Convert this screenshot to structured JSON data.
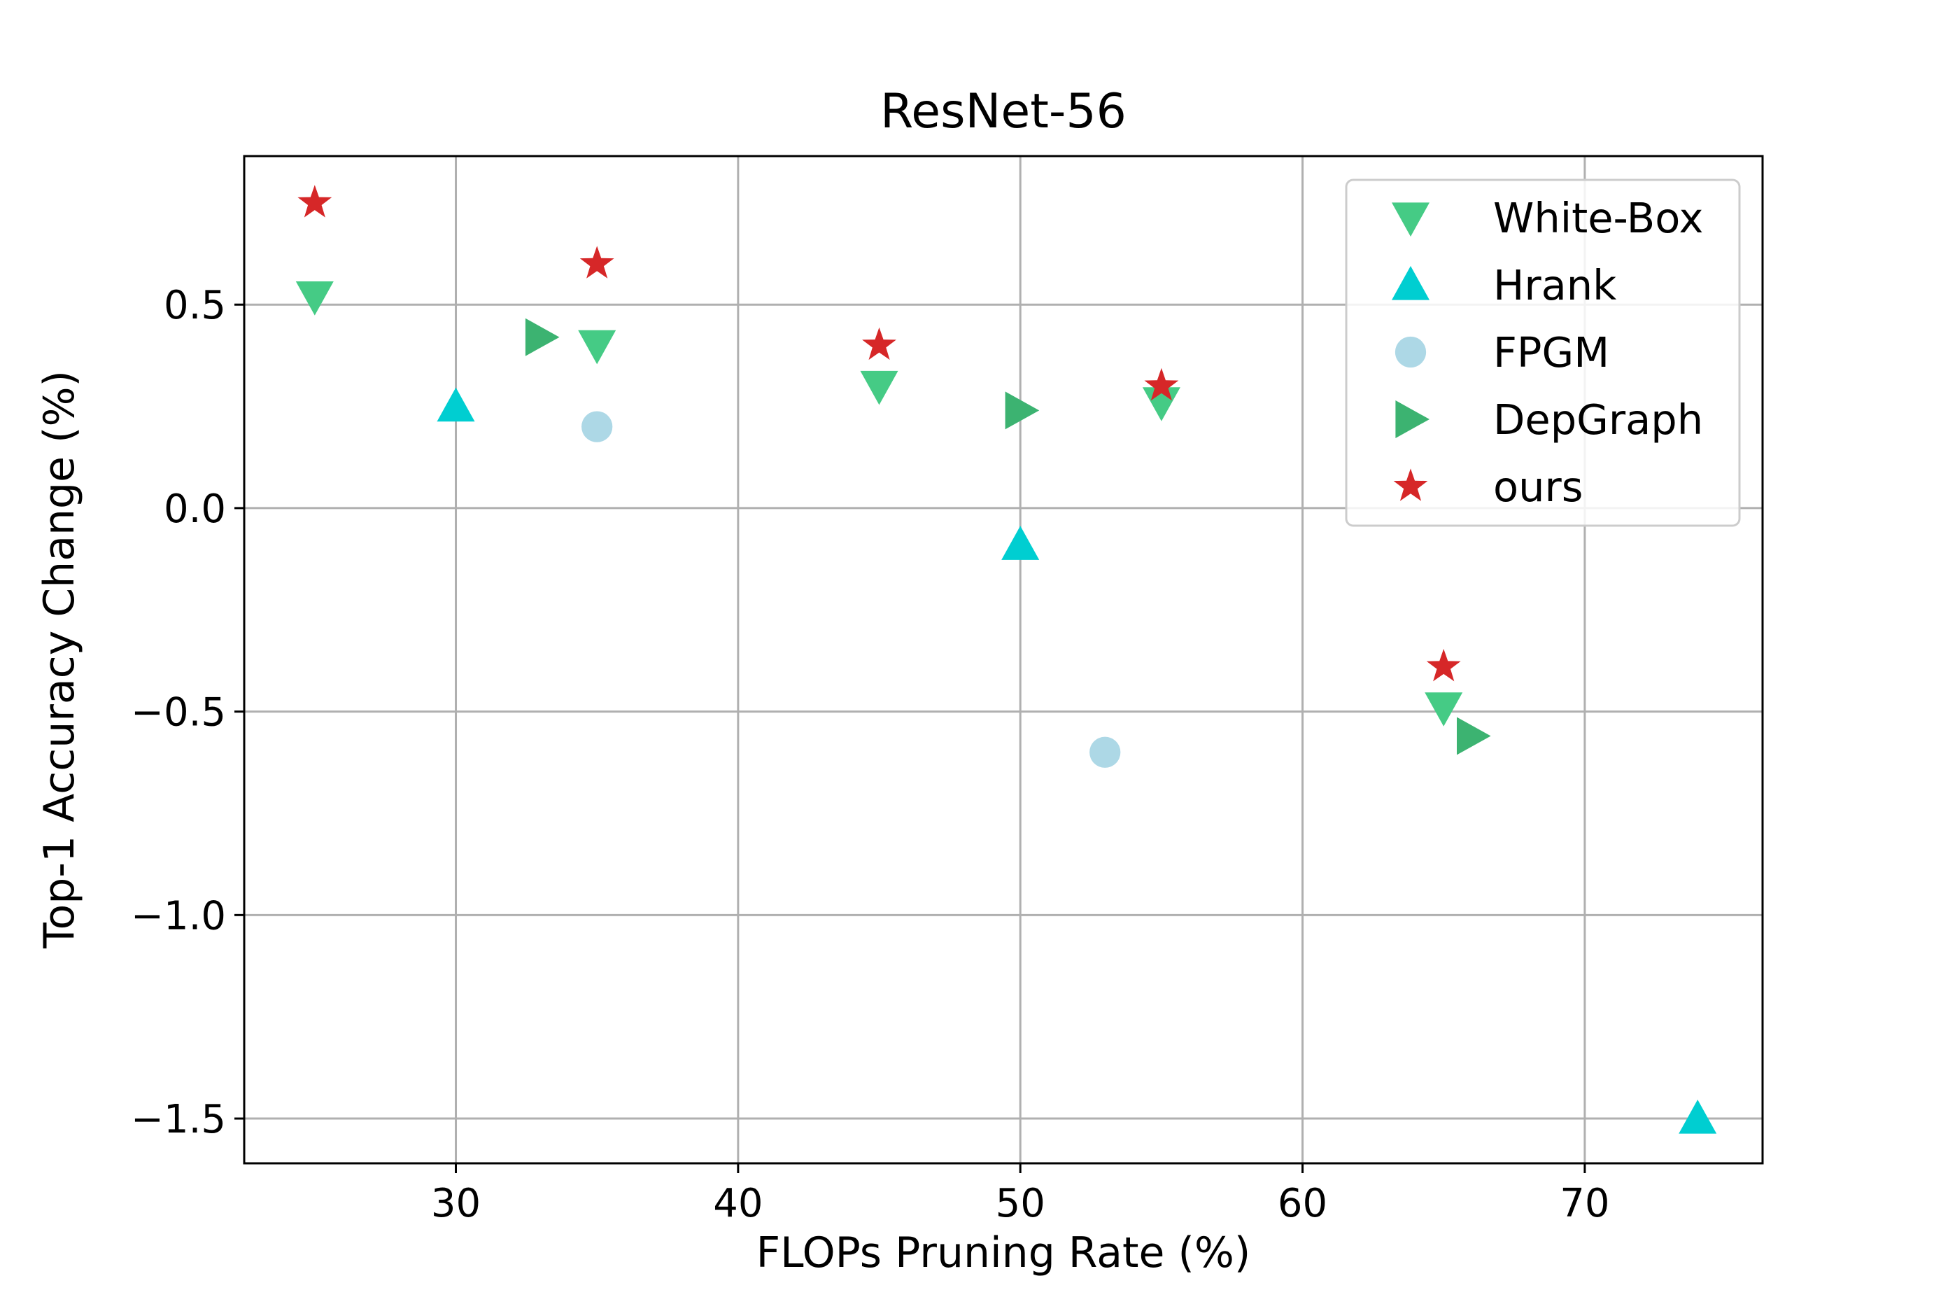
{
  "chart_data": {
    "type": "scatter",
    "title": "ResNet-56",
    "xlabel": "FLOPs Pruning Rate (%)",
    "ylabel": "Top-1 Accuracy Change (%)",
    "xlim": [
      22.5,
      76.3
    ],
    "ylim": [
      -1.61,
      0.865
    ],
    "xticks": [
      30,
      40,
      50,
      60,
      70
    ],
    "yticks": [
      0.5,
      0.0,
      -0.5,
      -1.0,
      -1.5
    ],
    "xtick_labels": [
      "30",
      "40",
      "50",
      "60",
      "70"
    ],
    "ytick_labels": [
      "0.5",
      "0.0",
      "−0.5",
      "−1.0",
      "−1.5"
    ],
    "grid": true,
    "legend_position": "top-right",
    "series": [
      {
        "name": "White-Box",
        "marker": "triangle-down",
        "color": "#45cb85",
        "points": [
          [
            25,
            0.52
          ],
          [
            35,
            0.4
          ],
          [
            45,
            0.3
          ],
          [
            55,
            0.26
          ],
          [
            65,
            -0.49
          ]
        ]
      },
      {
        "name": "Hrank",
        "marker": "triangle-up",
        "color": "#00ced1",
        "points": [
          [
            30,
            0.25
          ],
          [
            50,
            -0.09
          ],
          [
            74,
            -1.5
          ]
        ]
      },
      {
        "name": "FPGM",
        "marker": "circle",
        "color": "#add8e6",
        "points": [
          [
            35,
            0.2
          ],
          [
            53,
            -0.6
          ]
        ]
      },
      {
        "name": "DepGraph",
        "marker": "triangle-right",
        "color": "#3cb371",
        "points": [
          [
            33,
            0.42
          ],
          [
            50,
            0.24
          ],
          [
            66,
            -0.56
          ]
        ]
      },
      {
        "name": "ours",
        "marker": "star",
        "color": "#d62728",
        "points": [
          [
            25,
            0.75
          ],
          [
            35,
            0.6
          ],
          [
            45,
            0.4
          ],
          [
            55,
            0.3
          ],
          [
            65,
            -0.39
          ]
        ]
      }
    ]
  }
}
